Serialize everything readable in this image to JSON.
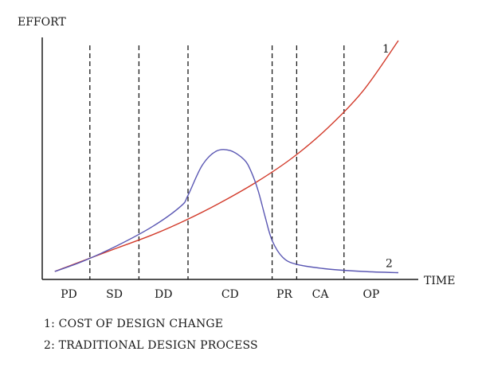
{
  "chart_data": {
    "type": "line",
    "ylabel": "EFFORT",
    "xlabel": "TIME",
    "xlim": [
      0,
      100
    ],
    "ylim": [
      0,
      100
    ],
    "grid": false,
    "phases": [
      {
        "label": "PD",
        "start": 0,
        "end": 12
      },
      {
        "label": "SD",
        "start": 12,
        "end": 26
      },
      {
        "label": "DD",
        "start": 26,
        "end": 40
      },
      {
        "label": "CD",
        "start": 40,
        "end": 64
      },
      {
        "label": "PR",
        "start": 64,
        "end": 71
      },
      {
        "label": "CA",
        "start": 71,
        "end": 84.5
      },
      {
        "label": "OP",
        "start": 84.5,
        "end": 100
      }
    ],
    "phase_boundaries": [
      12,
      26,
      40,
      64,
      71,
      84.5
    ],
    "series": [
      {
        "name": "1",
        "color": "#d23a2a",
        "x": [
          2,
          10,
          20,
          30,
          40,
          50,
          60,
          70,
          80,
          90,
          100
        ],
        "y": [
          2,
          6.5,
          12,
          17.5,
          24,
          31.5,
          40,
          50,
          62.5,
          78,
          99
        ]
      },
      {
        "name": "2",
        "color": "#5a57b3",
        "x": [
          2,
          10,
          20,
          30,
          38,
          40,
          44,
          48,
          52,
          56,
          58,
          60,
          62,
          64,
          67,
          71,
          80,
          90,
          100
        ],
        "y": [
          2,
          6.3,
          13,
          21,
          29.5,
          34,
          46.5,
          52.5,
          52.8,
          49,
          44,
          36,
          25,
          15,
          8,
          5,
          3,
          2,
          1.5
        ]
      }
    ]
  },
  "legend": {
    "item1": "1: COST OF DESIGN CHANGE",
    "item2": "2: TRADITIONAL DESIGN PROCESS"
  }
}
